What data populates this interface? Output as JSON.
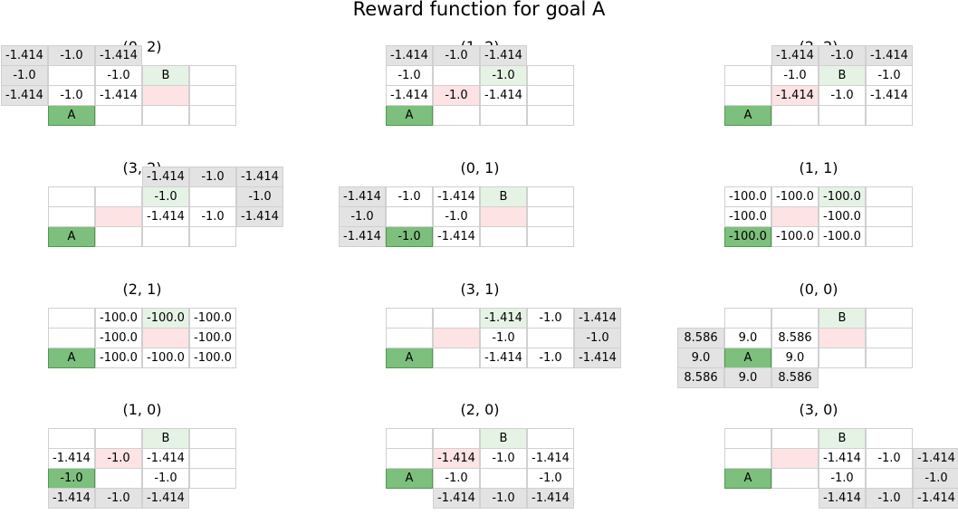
{
  "title": "Reward function for goal A",
  "colors": {
    "goal": "#7dbf7d",
    "other_goal": "#e5f3e5",
    "agent": "#fde3e3",
    "outside": "#e3e3e3",
    "grid": "#ffffff"
  },
  "chart_data": {
    "type": "table",
    "grid_width": 4,
    "grid_height": 3,
    "goal_label": "A",
    "goal_position": [
      0,
      0
    ],
    "other_goal_label": "B",
    "panels": [
      {
        "title": "(0, 2)",
        "agent": [
          2,
          1
        ],
        "other_goal": [
          2,
          2
        ],
        "values": [
          {
            "x": -1,
            "y": 3,
            "v": "-1.414"
          },
          {
            "x": 0,
            "y": 3,
            "v": "-1.0"
          },
          {
            "x": 1,
            "y": 3,
            "v": "-1.414"
          },
          {
            "x": -1,
            "y": 2,
            "v": "-1.0"
          },
          {
            "x": 1,
            "y": 2,
            "v": "-1.0"
          },
          {
            "x": -1,
            "y": 1,
            "v": "-1.414"
          },
          {
            "x": 0,
            "y": 1,
            "v": "-1.0"
          },
          {
            "x": 1,
            "y": 1,
            "v": "-1.414"
          }
        ]
      },
      {
        "title": "(1, 2)",
        "agent": [
          1,
          1
        ],
        "other_goal": [
          2,
          2
        ],
        "values": [
          {
            "x": 0,
            "y": 3,
            "v": "-1.414"
          },
          {
            "x": 1,
            "y": 3,
            "v": "-1.0"
          },
          {
            "x": 2,
            "y": 3,
            "v": "-1.414"
          },
          {
            "x": 0,
            "y": 2,
            "v": "-1.0"
          },
          {
            "x": 2,
            "y": 2,
            "v": "-1.0"
          },
          {
            "x": 0,
            "y": 1,
            "v": "-1.414"
          },
          {
            "x": 1,
            "y": 1,
            "v": "-1.0"
          },
          {
            "x": 2,
            "y": 1,
            "v": "-1.414"
          }
        ]
      },
      {
        "title": "(2, 2)",
        "agent": [
          1,
          1
        ],
        "other_goal": [
          2,
          2
        ],
        "values": [
          {
            "x": 1,
            "y": 3,
            "v": "-1.414"
          },
          {
            "x": 2,
            "y": 3,
            "v": "-1.0"
          },
          {
            "x": 3,
            "y": 3,
            "v": "-1.414"
          },
          {
            "x": 1,
            "y": 2,
            "v": "-1.0"
          },
          {
            "x": 3,
            "y": 2,
            "v": "-1.0"
          },
          {
            "x": 1,
            "y": 1,
            "v": "-1.414"
          },
          {
            "x": 2,
            "y": 1,
            "v": "-1.0"
          },
          {
            "x": 3,
            "y": 1,
            "v": "-1.414"
          }
        ]
      },
      {
        "title": "(3, 2)",
        "agent": [
          1,
          1
        ],
        "other_goal": [
          2,
          2
        ],
        "values": [
          {
            "x": 2,
            "y": 3,
            "v": "-1.414"
          },
          {
            "x": 3,
            "y": 3,
            "v": "-1.0"
          },
          {
            "x": 4,
            "y": 3,
            "v": "-1.414"
          },
          {
            "x": 2,
            "y": 2,
            "v": "-1.0"
          },
          {
            "x": 4,
            "y": 2,
            "v": "-1.0"
          },
          {
            "x": 2,
            "y": 1,
            "v": "-1.414"
          },
          {
            "x": 3,
            "y": 1,
            "v": "-1.0"
          },
          {
            "x": 4,
            "y": 1,
            "v": "-1.414"
          }
        ]
      },
      {
        "title": "(0, 1)",
        "agent": [
          2,
          1
        ],
        "other_goal": [
          2,
          2
        ],
        "values": [
          {
            "x": -1,
            "y": 2,
            "v": "-1.414"
          },
          {
            "x": 0,
            "y": 2,
            "v": "-1.0"
          },
          {
            "x": 1,
            "y": 2,
            "v": "-1.414"
          },
          {
            "x": -1,
            "y": 1,
            "v": "-1.0"
          },
          {
            "x": 1,
            "y": 1,
            "v": "-1.0"
          },
          {
            "x": -1,
            "y": 0,
            "v": "-1.414"
          },
          {
            "x": 0,
            "y": 0,
            "v": "-1.0"
          },
          {
            "x": 1,
            "y": 0,
            "v": "-1.414"
          }
        ]
      },
      {
        "title": "(1, 1)",
        "agent": [
          1,
          1
        ],
        "other_goal": [
          2,
          2
        ],
        "values": [
          {
            "x": 0,
            "y": 2,
            "v": "-100.0"
          },
          {
            "x": 1,
            "y": 2,
            "v": "-100.0"
          },
          {
            "x": 2,
            "y": 2,
            "v": "-100.0"
          },
          {
            "x": 0,
            "y": 1,
            "v": "-100.0"
          },
          {
            "x": 2,
            "y": 1,
            "v": "-100.0"
          },
          {
            "x": 0,
            "y": 0,
            "v": "-100.0"
          },
          {
            "x": 1,
            "y": 0,
            "v": "-100.0"
          },
          {
            "x": 2,
            "y": 0,
            "v": "-100.0"
          }
        ]
      },
      {
        "title": "(2, 1)",
        "agent": [
          2,
          1
        ],
        "other_goal": [
          2,
          2
        ],
        "values": [
          {
            "x": 1,
            "y": 2,
            "v": "-100.0"
          },
          {
            "x": 2,
            "y": 2,
            "v": "-100.0"
          },
          {
            "x": 3,
            "y": 2,
            "v": "-100.0"
          },
          {
            "x": 1,
            "y": 1,
            "v": "-100.0"
          },
          {
            "x": 3,
            "y": 1,
            "v": "-100.0"
          },
          {
            "x": 1,
            "y": 0,
            "v": "-100.0"
          },
          {
            "x": 2,
            "y": 0,
            "v": "-100.0"
          },
          {
            "x": 3,
            "y": 0,
            "v": "-100.0"
          }
        ]
      },
      {
        "title": "(3, 1)",
        "agent": [
          1,
          1
        ],
        "other_goal": [
          2,
          2
        ],
        "values": [
          {
            "x": 2,
            "y": 2,
            "v": "-1.414"
          },
          {
            "x": 3,
            "y": 2,
            "v": "-1.0"
          },
          {
            "x": 4,
            "y": 2,
            "v": "-1.414"
          },
          {
            "x": 2,
            "y": 1,
            "v": "-1.0"
          },
          {
            "x": 4,
            "y": 1,
            "v": "-1.0"
          },
          {
            "x": 2,
            "y": 0,
            "v": "-1.414"
          },
          {
            "x": 3,
            "y": 0,
            "v": "-1.0"
          },
          {
            "x": 4,
            "y": 0,
            "v": "-1.414"
          }
        ]
      },
      {
        "title": "(0, 0)",
        "agent": [
          2,
          1
        ],
        "other_goal": [
          2,
          2
        ],
        "values": [
          {
            "x": -1,
            "y": 1,
            "v": "8.586"
          },
          {
            "x": 0,
            "y": 1,
            "v": "9.0"
          },
          {
            "x": 1,
            "y": 1,
            "v": "8.586"
          },
          {
            "x": -1,
            "y": 0,
            "v": "9.0"
          },
          {
            "x": 1,
            "y": 0,
            "v": "9.0"
          },
          {
            "x": -1,
            "y": -1,
            "v": "8.586"
          },
          {
            "x": 0,
            "y": -1,
            "v": "9.0"
          },
          {
            "x": 1,
            "y": -1,
            "v": "8.586"
          }
        ]
      },
      {
        "title": "(1, 0)",
        "agent": [
          1,
          1
        ],
        "other_goal": [
          2,
          2
        ],
        "values": [
          {
            "x": 0,
            "y": 1,
            "v": "-1.414"
          },
          {
            "x": 1,
            "y": 1,
            "v": "-1.0"
          },
          {
            "x": 2,
            "y": 1,
            "v": "-1.414"
          },
          {
            "x": 0,
            "y": 0,
            "v": "-1.0"
          },
          {
            "x": 2,
            "y": 0,
            "v": "-1.0"
          },
          {
            "x": 0,
            "y": -1,
            "v": "-1.414"
          },
          {
            "x": 1,
            "y": -1,
            "v": "-1.0"
          },
          {
            "x": 2,
            "y": -1,
            "v": "-1.414"
          }
        ]
      },
      {
        "title": "(2, 0)",
        "agent": [
          1,
          1
        ],
        "other_goal": [
          2,
          2
        ],
        "values": [
          {
            "x": 1,
            "y": 1,
            "v": "-1.414"
          },
          {
            "x": 2,
            "y": 1,
            "v": "-1.0"
          },
          {
            "x": 3,
            "y": 1,
            "v": "-1.414"
          },
          {
            "x": 1,
            "y": 0,
            "v": "-1.0"
          },
          {
            "x": 3,
            "y": 0,
            "v": "-1.0"
          },
          {
            "x": 1,
            "y": -1,
            "v": "-1.414"
          },
          {
            "x": 2,
            "y": -1,
            "v": "-1.0"
          },
          {
            "x": 3,
            "y": -1,
            "v": "-1.414"
          }
        ]
      },
      {
        "title": "(3, 0)",
        "agent": [
          1,
          1
        ],
        "other_goal": [
          2,
          2
        ],
        "values": [
          {
            "x": 2,
            "y": 1,
            "v": "-1.414"
          },
          {
            "x": 3,
            "y": 1,
            "v": "-1.0"
          },
          {
            "x": 4,
            "y": 1,
            "v": "-1.414"
          },
          {
            "x": 2,
            "y": 0,
            "v": "-1.0"
          },
          {
            "x": 4,
            "y": 0,
            "v": "-1.0"
          },
          {
            "x": 2,
            "y": -1,
            "v": "-1.414"
          },
          {
            "x": 3,
            "y": -1,
            "v": "-1.0"
          },
          {
            "x": 4,
            "y": -1,
            "v": "-1.414"
          }
        ]
      }
    ]
  }
}
